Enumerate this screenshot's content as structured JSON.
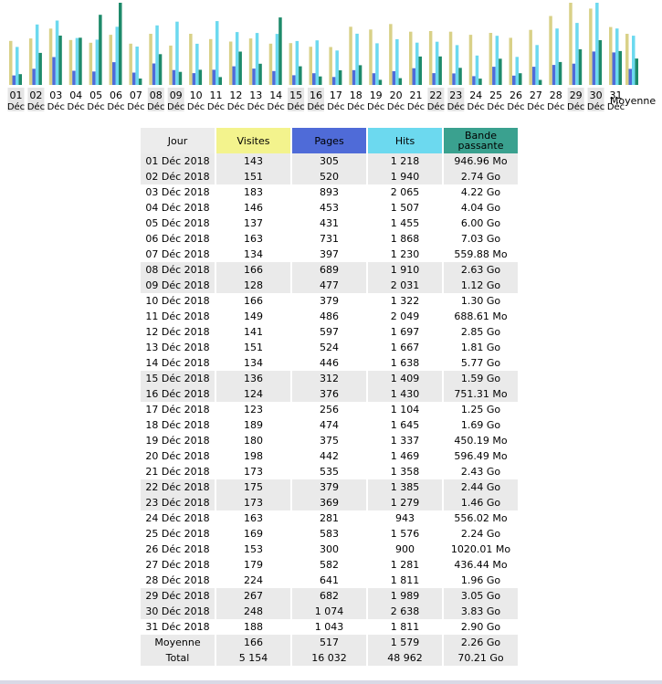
{
  "chart_data": {
    "type": "bar",
    "categories": [
      "01",
      "02",
      "03",
      "04",
      "05",
      "06",
      "07",
      "08",
      "09",
      "10",
      "11",
      "12",
      "13",
      "14",
      "15",
      "16",
      "17",
      "18",
      "19",
      "20",
      "21",
      "22",
      "23",
      "24",
      "25",
      "26",
      "27",
      "28",
      "29",
      "30",
      "31"
    ],
    "category_sub": "Déc",
    "weekend_highlight": [
      "01",
      "02",
      "08",
      "09",
      "15",
      "16",
      "22",
      "23",
      "29",
      "30"
    ],
    "average_label": "Moyenne",
    "series": [
      {
        "name": "Visites",
        "color": "#d9d188",
        "values": [
          143,
          151,
          183,
          146,
          137,
          163,
          134,
          166,
          128,
          166,
          149,
          141,
          151,
          134,
          136,
          124,
          123,
          189,
          180,
          198,
          173,
          175,
          173,
          163,
          169,
          153,
          179,
          224,
          267,
          248,
          188
        ],
        "average": 166
      },
      {
        "name": "Pages",
        "color": "#4f6bd8",
        "values": [
          305,
          520,
          893,
          453,
          431,
          731,
          397,
          689,
          477,
          379,
          486,
          597,
          524,
          446,
          312,
          376,
          256,
          474,
          375,
          442,
          535,
          379,
          369,
          281,
          583,
          300,
          582,
          641,
          682,
          1074,
          1043
        ],
        "average": 517
      },
      {
        "name": "Hits",
        "color": "#6cd9ef",
        "values": [
          1218,
          1940,
          2065,
          1507,
          1455,
          1868,
          1230,
          1910,
          2031,
          1322,
          2049,
          1697,
          1667,
          1638,
          1409,
          1430,
          1104,
          1645,
          1337,
          1469,
          1358,
          1385,
          1279,
          943,
          1576,
          900,
          1281,
          1811,
          1989,
          2638,
          1811
        ],
        "average": 1579
      },
      {
        "name": "Bande passante",
        "color": "#1e8a6a",
        "values_go": [
          0.92,
          2.74,
          4.22,
          4.04,
          6.0,
          7.03,
          0.55,
          2.63,
          1.12,
          1.3,
          0.67,
          2.85,
          1.81,
          5.77,
          1.59,
          0.73,
          1.25,
          1.69,
          0.44,
          0.58,
          2.43,
          2.44,
          1.46,
          0.54,
          2.24,
          1.0,
          0.43,
          1.96,
          3.05,
          3.83,
          2.9
        ],
        "average_go": 2.26
      }
    ]
  },
  "table": {
    "headers": [
      "Jour",
      "Visites",
      "Pages",
      "Hits",
      "Bande\npassante"
    ],
    "rows": [
      [
        "01 Déc 2018",
        "143",
        "305",
        "1 218",
        "946.96 Mo"
      ],
      [
        "02 Déc 2018",
        "151",
        "520",
        "1 940",
        "2.74 Go"
      ],
      [
        "03 Déc 2018",
        "183",
        "893",
        "2 065",
        "4.22 Go"
      ],
      [
        "04 Déc 2018",
        "146",
        "453",
        "1 507",
        "4.04 Go"
      ],
      [
        "05 Déc 2018",
        "137",
        "431",
        "1 455",
        "6.00 Go"
      ],
      [
        "06 Déc 2018",
        "163",
        "731",
        "1 868",
        "7.03 Go"
      ],
      [
        "07 Déc 2018",
        "134",
        "397",
        "1 230",
        "559.88 Mo"
      ],
      [
        "08 Déc 2018",
        "166",
        "689",
        "1 910",
        "2.63 Go"
      ],
      [
        "09 Déc 2018",
        "128",
        "477",
        "2 031",
        "1.12 Go"
      ],
      [
        "10 Déc 2018",
        "166",
        "379",
        "1 322",
        "1.30 Go"
      ],
      [
        "11 Déc 2018",
        "149",
        "486",
        "2 049",
        "688.61 Mo"
      ],
      [
        "12 Déc 2018",
        "141",
        "597",
        "1 697",
        "2.85 Go"
      ],
      [
        "13 Déc 2018",
        "151",
        "524",
        "1 667",
        "1.81 Go"
      ],
      [
        "14 Déc 2018",
        "134",
        "446",
        "1 638",
        "5.77 Go"
      ],
      [
        "15 Déc 2018",
        "136",
        "312",
        "1 409",
        "1.59 Go"
      ],
      [
        "16 Déc 2018",
        "124",
        "376",
        "1 430",
        "751.31 Mo"
      ],
      [
        "17 Déc 2018",
        "123",
        "256",
        "1 104",
        "1.25 Go"
      ],
      [
        "18 Déc 2018",
        "189",
        "474",
        "1 645",
        "1.69 Go"
      ],
      [
        "19 Déc 2018",
        "180",
        "375",
        "1 337",
        "450.19 Mo"
      ],
      [
        "20 Déc 2018",
        "198",
        "442",
        "1 469",
        "596.49 Mo"
      ],
      [
        "21 Déc 2018",
        "173",
        "535",
        "1 358",
        "2.43 Go"
      ],
      [
        "22 Déc 2018",
        "175",
        "379",
        "1 385",
        "2.44 Go"
      ],
      [
        "23 Déc 2018",
        "173",
        "369",
        "1 279",
        "1.46 Go"
      ],
      [
        "24 Déc 2018",
        "163",
        "281",
        "943",
        "556.02 Mo"
      ],
      [
        "25 Déc 2018",
        "169",
        "583",
        "1 576",
        "2.24 Go"
      ],
      [
        "26 Déc 2018",
        "153",
        "300",
        "900",
        "1020.01 Mo"
      ],
      [
        "27 Déc 2018",
        "179",
        "582",
        "1 281",
        "436.44 Mo"
      ],
      [
        "28 Déc 2018",
        "224",
        "641",
        "1 811",
        "1.96 Go"
      ],
      [
        "29 Déc 2018",
        "267",
        "682",
        "1 989",
        "3.05 Go"
      ],
      [
        "30 Déc 2018",
        "248",
        "1 074",
        "2 638",
        "3.83 Go"
      ],
      [
        "31 Déc 2018",
        "188",
        "1 043",
        "1 811",
        "2.90 Go"
      ]
    ],
    "weekend_rows": [
      0,
      1,
      7,
      8,
      14,
      15,
      21,
      22,
      28,
      29
    ],
    "average": [
      "Moyenne",
      "166",
      "517",
      "1 579",
      "2.26 Go"
    ],
    "total": [
      "Total",
      "5 154",
      "16 032",
      "48 962",
      "70.21 Go"
    ]
  }
}
